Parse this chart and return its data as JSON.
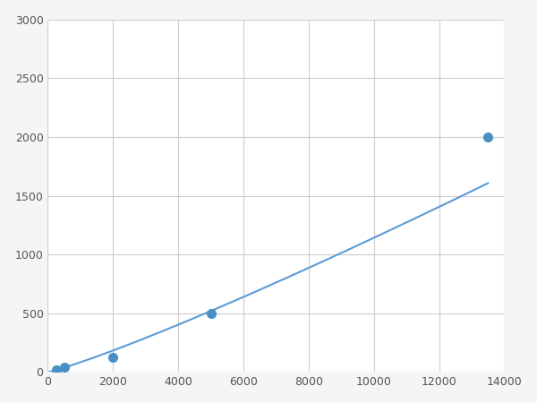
{
  "x_points": [
    250,
    500,
    2000,
    5000,
    13500
  ],
  "y_points": [
    20,
    40,
    125,
    500,
    2000
  ],
  "line_color": "#5b9bd5",
  "marker_color": "#4a90c4",
  "marker_size": 7,
  "line_width": 1.5,
  "xlim": [
    0,
    14000
  ],
  "ylim": [
    0,
    3000
  ],
  "xticks": [
    0,
    2000,
    4000,
    6000,
    8000,
    10000,
    12000,
    14000
  ],
  "yticks": [
    0,
    500,
    1000,
    1500,
    2000,
    2500,
    3000
  ],
  "grid_color": "#cccccc",
  "background_color": "#ffffff",
  "figure_bg": "#f5f5f5"
}
